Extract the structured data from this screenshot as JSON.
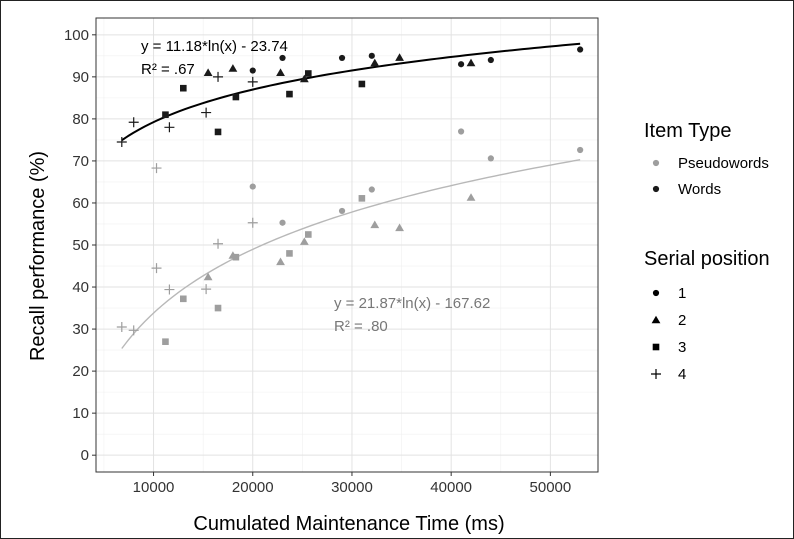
{
  "chart_data": {
    "type": "scatter",
    "xlabel": "Cumulated Maintenance Time (ms)",
    "ylabel": "Recall performance (%)",
    "xlim": [
      4200,
      54800
    ],
    "ylim": [
      -4,
      104
    ],
    "x_ticks": [
      10000,
      20000,
      30000,
      40000,
      50000
    ],
    "x_tick_labels": [
      "10000",
      "20000",
      "30000",
      "40000",
      "50000"
    ],
    "y_ticks": [
      0,
      10,
      20,
      30,
      40,
      50,
      60,
      70,
      80,
      90,
      100
    ],
    "y_tick_labels": [
      "0",
      "10",
      "20",
      "30",
      "40",
      "50",
      "60",
      "70",
      "80",
      "90",
      "100"
    ],
    "grid": true,
    "legend_position": "right",
    "colors": {
      "Words": "#1a1a1a",
      "Pseudowords": "#9e9e9e",
      "words_fit": "#000000",
      "pseudo_fit": "#b8b8b8"
    },
    "legend": {
      "color_title": "Item Type",
      "color_items": [
        {
          "label": "Pseudowords",
          "color": "#9e9e9e"
        },
        {
          "label": "Words",
          "color": "#1a1a1a"
        }
      ],
      "shape_title": "Serial position",
      "shape_items": [
        {
          "label": "1",
          "shape": "circle"
        },
        {
          "label": "2",
          "shape": "triangle"
        },
        {
          "label": "3",
          "shape": "square"
        },
        {
          "label": "4",
          "shape": "plus"
        }
      ]
    },
    "series": [
      {
        "name": "Words",
        "points": [
          {
            "x": 20000,
            "y": 91.5,
            "pos": 1
          },
          {
            "x": 23000,
            "y": 94.5,
            "pos": 1
          },
          {
            "x": 29000,
            "y": 94.5,
            "pos": 1
          },
          {
            "x": 32000,
            "y": 95,
            "pos": 1
          },
          {
            "x": 41000,
            "y": 93,
            "pos": 1
          },
          {
            "x": 44000,
            "y": 94,
            "pos": 1
          },
          {
            "x": 53000,
            "y": 96.5,
            "pos": 1
          },
          {
            "x": 15500,
            "y": 91,
            "pos": 2
          },
          {
            "x": 18000,
            "y": 92,
            "pos": 2
          },
          {
            "x": 22800,
            "y": 91,
            "pos": 2
          },
          {
            "x": 25200,
            "y": 89.5,
            "pos": 2
          },
          {
            "x": 32300,
            "y": 93.3,
            "pos": 2
          },
          {
            "x": 34800,
            "y": 94.6,
            "pos": 2
          },
          {
            "x": 42000,
            "y": 93.3,
            "pos": 2
          },
          {
            "x": 11200,
            "y": 81,
            "pos": 3
          },
          {
            "x": 13000,
            "y": 87.3,
            "pos": 3
          },
          {
            "x": 16500,
            "y": 76.9,
            "pos": 3
          },
          {
            "x": 18300,
            "y": 85.2,
            "pos": 3
          },
          {
            "x": 23700,
            "y": 85.9,
            "pos": 3
          },
          {
            "x": 25600,
            "y": 90.8,
            "pos": 3
          },
          {
            "x": 31000,
            "y": 88.3,
            "pos": 3
          },
          {
            "x": 6800,
            "y": 74.5,
            "pos": 4
          },
          {
            "x": 8000,
            "y": 79.2,
            "pos": 4
          },
          {
            "x": 11600,
            "y": 78,
            "pos": 4
          },
          {
            "x": 15300,
            "y": 81.5,
            "pos": 4
          },
          {
            "x": 16500,
            "y": 90,
            "pos": 4
          },
          {
            "x": 20000,
            "y": 88.8,
            "pos": 4
          }
        ]
      },
      {
        "name": "Pseudowords",
        "points": [
          {
            "x": 20000,
            "y": 63.9,
            "pos": 1
          },
          {
            "x": 23000,
            "y": 55.3,
            "pos": 1
          },
          {
            "x": 29000,
            "y": 58.1,
            "pos": 1
          },
          {
            "x": 32000,
            "y": 63.2,
            "pos": 1
          },
          {
            "x": 41000,
            "y": 77,
            "pos": 1
          },
          {
            "x": 44000,
            "y": 70.6,
            "pos": 1
          },
          {
            "x": 53000,
            "y": 72.6,
            "pos": 1
          },
          {
            "x": 15500,
            "y": 42.4,
            "pos": 2
          },
          {
            "x": 18000,
            "y": 47.5,
            "pos": 2
          },
          {
            "x": 22800,
            "y": 46,
            "pos": 2
          },
          {
            "x": 25200,
            "y": 50.8,
            "pos": 2
          },
          {
            "x": 32300,
            "y": 54.8,
            "pos": 2
          },
          {
            "x": 34800,
            "y": 54.1,
            "pos": 2
          },
          {
            "x": 42000,
            "y": 61.3,
            "pos": 2
          },
          {
            "x": 11200,
            "y": 27,
            "pos": 3
          },
          {
            "x": 13000,
            "y": 37.2,
            "pos": 3
          },
          {
            "x": 16500,
            "y": 35,
            "pos": 3
          },
          {
            "x": 18300,
            "y": 47.1,
            "pos": 3
          },
          {
            "x": 23700,
            "y": 48,
            "pos": 3
          },
          {
            "x": 25600,
            "y": 52.5,
            "pos": 3
          },
          {
            "x": 31000,
            "y": 61.1,
            "pos": 3
          },
          {
            "x": 6800,
            "y": 30.5,
            "pos": 4
          },
          {
            "x": 8000,
            "y": 29.7,
            "pos": 4
          },
          {
            "x": 10300,
            "y": 44.5,
            "pos": 4
          },
          {
            "x": 11600,
            "y": 39.4,
            "pos": 4
          },
          {
            "x": 15300,
            "y": 39.5,
            "pos": 4
          },
          {
            "x": 16500,
            "y": 50.3,
            "pos": 4
          },
          {
            "x": 20000,
            "y": 55.3,
            "pos": 4
          },
          {
            "x": 10300,
            "y": 68.3,
            "pos": 4
          }
        ]
      }
    ],
    "fits": [
      {
        "series": "Words",
        "a": 11.18,
        "b": -23.74,
        "x_range": [
          6800,
          53000
        ],
        "equation": "y = 11.18*ln(x) - 23.74",
        "r2": "R² = .67"
      },
      {
        "series": "Pseudowords",
        "a": 21.87,
        "b": -167.62,
        "x_range": [
          6800,
          53000
        ],
        "equation": "y = 21.87*ln(x) - 167.62",
        "r2": "R² = .80"
      }
    ]
  }
}
